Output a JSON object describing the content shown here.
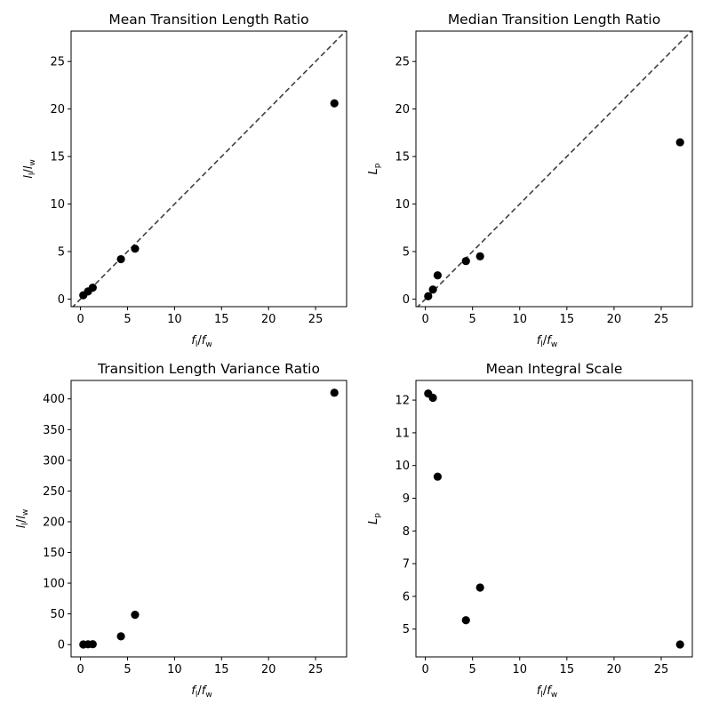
{
  "chart_data": [
    {
      "type": "scatter",
      "title": "Mean Transition Length Ratio",
      "xlabel_base": "f",
      "xlabel_num_sub": "l",
      "xlabel_den_sub": "w",
      "ylabel_base": "l",
      "ylabel_num_sub": "l",
      "ylabel_den_sub": "w",
      "xlim": [
        -1,
        28.3
      ],
      "ylim": [
        -0.8,
        28.2
      ],
      "xticks": [
        0,
        5,
        10,
        15,
        20,
        25
      ],
      "yticks": [
        0,
        5,
        10,
        15,
        20,
        25
      ],
      "reference_line": "y = x",
      "x": [
        0.3,
        0.8,
        1.3,
        4.3,
        5.8,
        27.0
      ],
      "y": [
        0.4,
        0.8,
        1.2,
        4.2,
        5.3,
        20.6
      ]
    },
    {
      "type": "scatter",
      "title": "Median Transition Length Ratio",
      "xlabel_base": "f",
      "xlabel_num_sub": "l",
      "xlabel_den_sub": "w",
      "ylabel_base": "L",
      "ylabel_sub": "p",
      "xlim": [
        -1,
        28.3
      ],
      "ylim": [
        -0.8,
        28.2
      ],
      "xticks": [
        0,
        5,
        10,
        15,
        20,
        25
      ],
      "yticks": [
        0,
        5,
        10,
        15,
        20,
        25
      ],
      "reference_line": "y = x",
      "x": [
        0.3,
        0.8,
        1.3,
        4.3,
        5.8,
        27.0
      ],
      "y": [
        0.3,
        1.0,
        2.5,
        4.0,
        4.5,
        16.5
      ]
    },
    {
      "type": "scatter",
      "title": "Transition Length Variance Ratio",
      "xlabel_base": "f",
      "xlabel_num_sub": "l",
      "xlabel_den_sub": "w",
      "ylabel_base": "l",
      "ylabel_num_sub": "l",
      "ylabel_den_sub": "w",
      "xlim": [
        -1,
        28.3
      ],
      "ylim": [
        -20,
        430
      ],
      "xticks": [
        0,
        5,
        10,
        15,
        20,
        25
      ],
      "yticks": [
        0,
        50,
        100,
        150,
        200,
        250,
        300,
        350,
        400
      ],
      "x": [
        0.3,
        0.8,
        1.3,
        4.3,
        5.8,
        27.0
      ],
      "y": [
        0.3,
        0.5,
        0.7,
        13.5,
        48.5,
        410.0
      ]
    },
    {
      "type": "scatter",
      "title": "Mean Integral Scale",
      "xlabel_base": "f",
      "xlabel_num_sub": "l",
      "xlabel_den_sub": "w",
      "ylabel_base": "L",
      "ylabel_sub": "p",
      "xlim": [
        -1,
        28.3
      ],
      "ylim": [
        4.15,
        12.6
      ],
      "xticks": [
        0,
        5,
        10,
        15,
        20,
        25
      ],
      "yticks": [
        5,
        6,
        7,
        8,
        9,
        10,
        11,
        12
      ],
      "x": [
        0.3,
        0.8,
        1.3,
        4.3,
        5.8,
        27.0
      ],
      "y": [
        12.2,
        12.07,
        9.66,
        5.27,
        6.27,
        4.53
      ]
    }
  ]
}
